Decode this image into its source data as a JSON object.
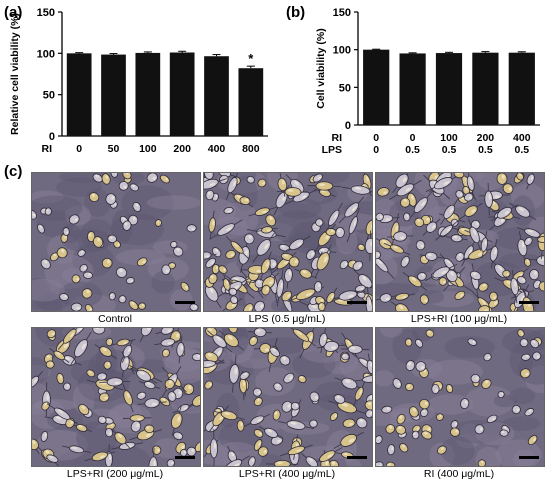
{
  "panels": {
    "a": "(a)",
    "b": "(b)",
    "c": "(c)"
  },
  "chart_data": [
    {
      "type": "bar",
      "panel": "(a)",
      "ylabel": "Relative cell viability (%)",
      "ylim": [
        0,
        150
      ],
      "yticks": [
        0,
        50,
        100,
        150
      ],
      "row_labels": [
        "RI"
      ],
      "categories": [
        "0",
        "50",
        "100",
        "200",
        "400",
        "800"
      ],
      "series": [
        {
          "values": [
            100,
            98.5,
            100.5,
            101,
            96.5,
            82
          ],
          "errors": [
            0.8,
            1.2,
            1.2,
            1.5,
            2.0,
            2.5
          ]
        }
      ],
      "annotations": [
        {
          "category": "800",
          "text": "*"
        }
      ],
      "grid": false,
      "colors": {
        "bar": "#111111"
      }
    },
    {
      "type": "bar",
      "panel": "(b)",
      "ylabel": "Cell viability (%)",
      "ylim": [
        0,
        150
      ],
      "yticks": [
        0,
        50,
        100,
        150
      ],
      "row_labels": [
        "RI",
        "LPS"
      ],
      "categories": [
        "0",
        "0",
        "100",
        "200",
        "400"
      ],
      "category_rows": [
        [
          "0",
          "0",
          "100",
          "200",
          "400"
        ],
        [
          "0",
          "0.5",
          "0.5",
          "0.5",
          "0.5"
        ]
      ],
      "series": [
        {
          "values": [
            100,
            95,
            95.5,
            96,
            96
          ],
          "errors": [
            0.6,
            0.8,
            1.0,
            1.4,
            1.2
          ]
        }
      ],
      "grid": false,
      "colors": {
        "bar": "#111111"
      }
    }
  ],
  "micrographs": [
    {
      "caption": "Control",
      "density": "low"
    },
    {
      "caption": "LPS (0.5 μg/mL)",
      "density": "high"
    },
    {
      "caption": "LPS+RI (100 μg/mL)",
      "density": "high"
    },
    {
      "caption": "LPS+RI (200 μg/mL)",
      "density": "medium"
    },
    {
      "caption": "LPS+RI (400 μg/mL)",
      "density": "medium"
    },
    {
      "caption": "RI (400 μg/mL)",
      "density": "low"
    }
  ]
}
